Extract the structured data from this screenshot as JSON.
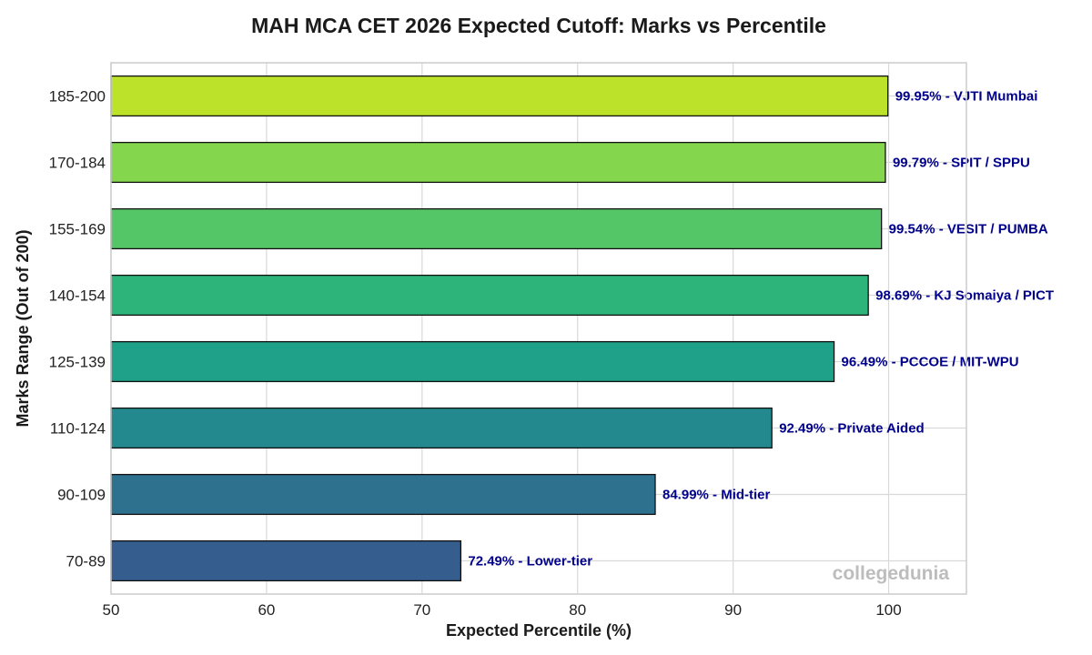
{
  "chart_data": {
    "type": "bar",
    "orientation": "horizontal",
    "title": "MAH MCA CET 2026 Expected Cutoff: Marks vs Percentile",
    "xlabel": "Expected Percentile (%)",
    "ylabel": "Marks Range (Out of 200)",
    "xlim": [
      50,
      105
    ],
    "xticks": [
      50,
      60,
      70,
      80,
      90,
      100
    ],
    "grid": true,
    "categories": [
      "185-200",
      "170-184",
      "155-169",
      "140-154",
      "125-139",
      "110-124",
      "90-109",
      "70-89"
    ],
    "values": [
      99.95,
      99.79,
      99.54,
      98.69,
      96.49,
      92.49,
      84.99,
      72.49
    ],
    "data_labels": [
      "99.95% - VJTI Mumbai",
      "99.79% - SPIT / SPPU",
      "99.54% - VESIT / PUMBA",
      "98.69% - KJ Somaiya / PICT",
      "96.49% - PCCOE / MIT-WPU",
      "92.49% - Private Aided",
      "84.99% - Mid-tier",
      "72.49% - Lower-tier"
    ],
    "bar_colors": [
      "#bde22a",
      "#84d64d",
      "#55c667",
      "#2db47a",
      "#1fa088",
      "#23898e",
      "#2d718e",
      "#355d8d"
    ],
    "label_color": "#00008b",
    "watermark": "collegedunia"
  }
}
